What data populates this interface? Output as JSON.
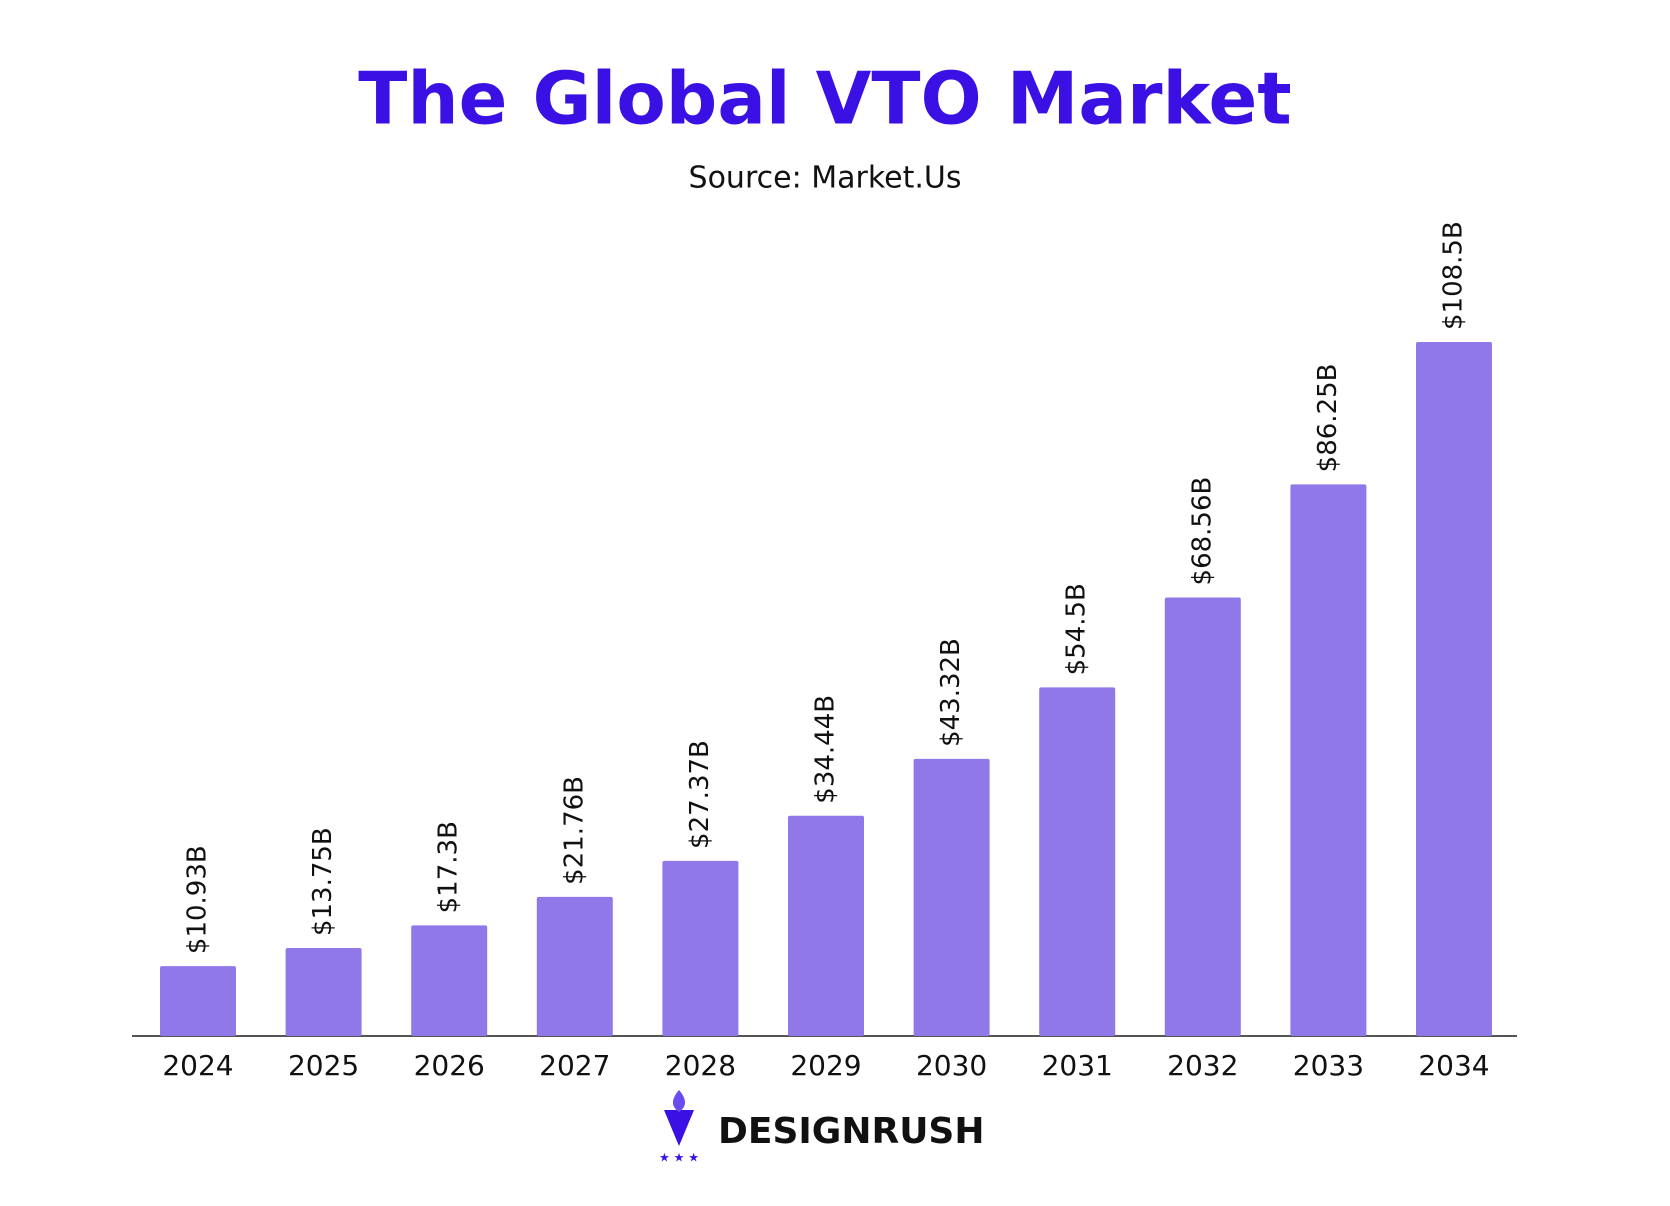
{
  "chart_data": {
    "type": "bar",
    "title": "The Global VTO Market",
    "subtitle": "Source: Market.Us",
    "categories": [
      "2024",
      "2025",
      "2026",
      "2027",
      "2028",
      "2029",
      "2030",
      "2031",
      "2032",
      "2033",
      "2034"
    ],
    "values": [
      10.93,
      13.75,
      17.3,
      21.76,
      27.37,
      34.44,
      43.32,
      54.5,
      68.56,
      86.25,
      108.5
    ],
    "value_labels": [
      "$10.93B",
      "$13.75B",
      "$17.3B",
      "$21.76B",
      "$27.37B",
      "$34.44B",
      "$43.32B",
      "$54.5B",
      "$68.56B",
      "$86.25B",
      "$108.5B"
    ],
    "color": "#9178e9"
  },
  "logo": "DESIGNRUSH"
}
